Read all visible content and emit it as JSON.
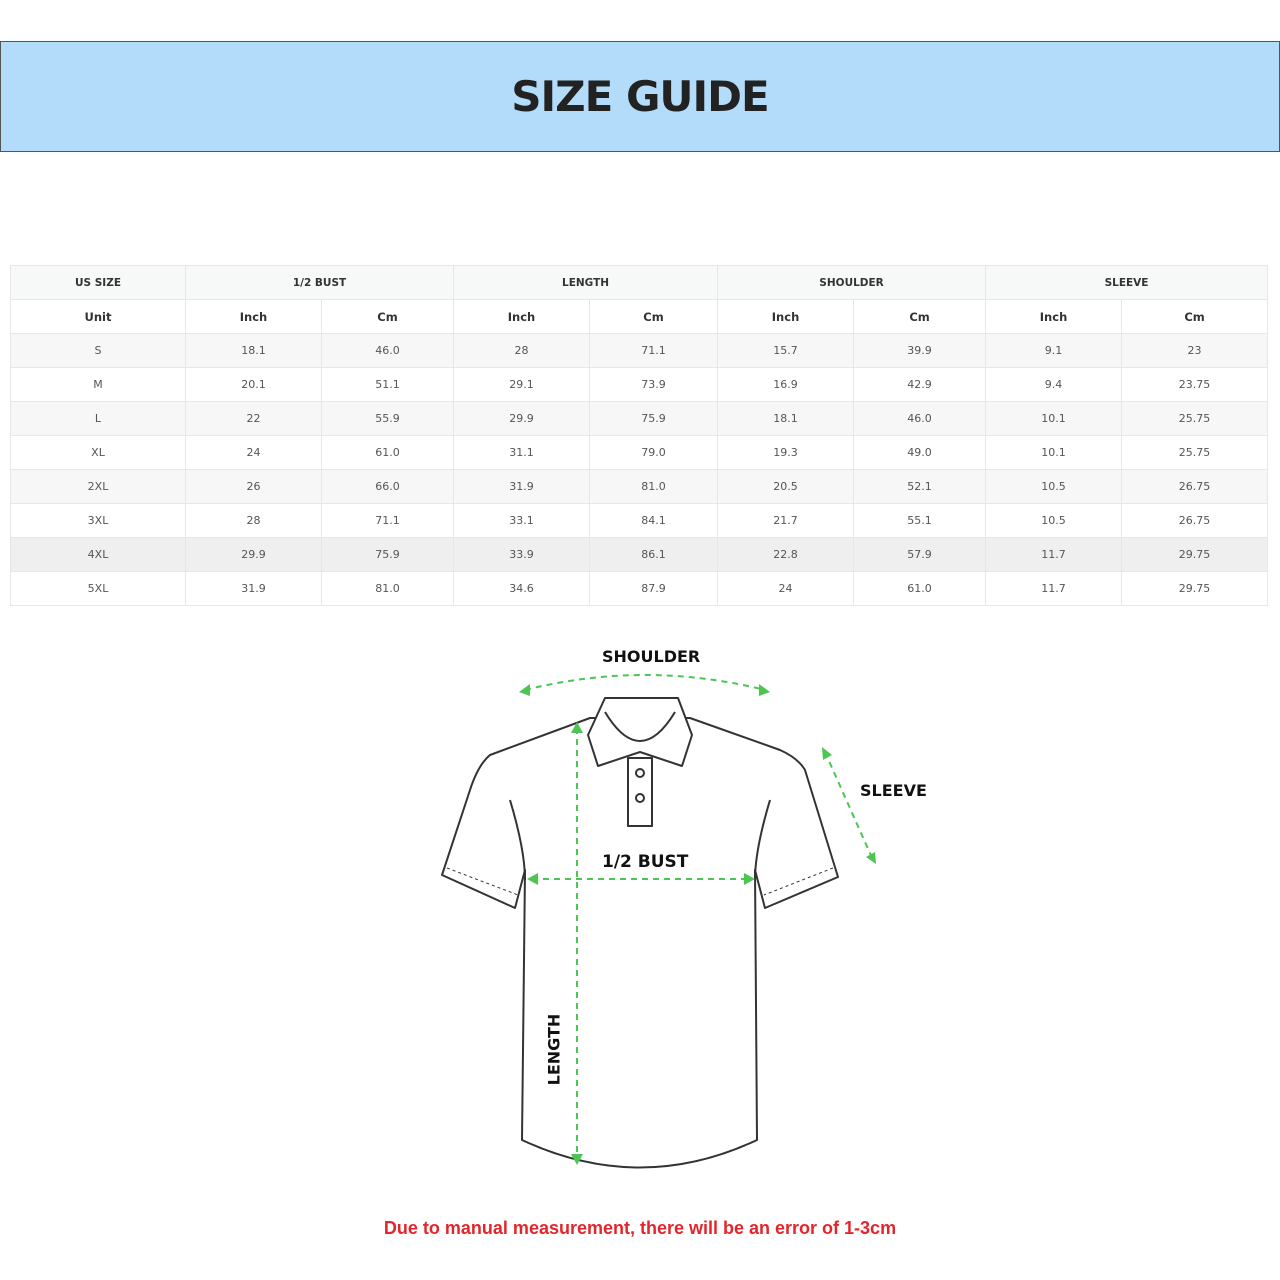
{
  "title": "SIZE GUIDE",
  "table": {
    "groups": [
      "US SIZE",
      "1/2 BUST",
      "LENGTH",
      "SHOULDER",
      "SLEEVE"
    ],
    "unit_row": [
      "Unit",
      "Inch",
      "Cm",
      "Inch",
      "Cm",
      "Inch",
      "Cm",
      "Inch",
      "Cm"
    ],
    "rows": [
      [
        "S",
        "18.1",
        "46.0",
        "28",
        "71.1",
        "15.7",
        "39.9",
        "9.1",
        "23"
      ],
      [
        "M",
        "20.1",
        "51.1",
        "29.1",
        "73.9",
        "16.9",
        "42.9",
        "9.4",
        "23.75"
      ],
      [
        "L",
        "22",
        "55.9",
        "29.9",
        "75.9",
        "18.1",
        "46.0",
        "10.1",
        "25.75"
      ],
      [
        "XL",
        "24",
        "61.0",
        "31.1",
        "79.0",
        "19.3",
        "49.0",
        "10.1",
        "25.75"
      ],
      [
        "2XL",
        "26",
        "66.0",
        "31.9",
        "81.0",
        "20.5",
        "52.1",
        "10.5",
        "26.75"
      ],
      [
        "3XL",
        "28",
        "71.1",
        "33.1",
        "84.1",
        "21.7",
        "55.1",
        "10.5",
        "26.75"
      ],
      [
        "4XL",
        "29.9",
        "75.9",
        "33.9",
        "86.1",
        "22.8",
        "57.9",
        "11.7",
        "29.75"
      ],
      [
        "5XL",
        "31.9",
        "81.0",
        "34.6",
        "87.9",
        "24",
        "61.0",
        "11.7",
        "29.75"
      ]
    ]
  },
  "diagram": {
    "shoulder_label": "SHOULDER",
    "sleeve_label": "SLEEVE",
    "bust_label": "1/2 BUST",
    "length_label": "LENGTH",
    "arrow_color": "#4cc552"
  },
  "note": "Due to manual measurement, there will be an error of 1-3cm",
  "colors": {
    "banner": "#b3dcfa",
    "note": "#e3262b"
  }
}
